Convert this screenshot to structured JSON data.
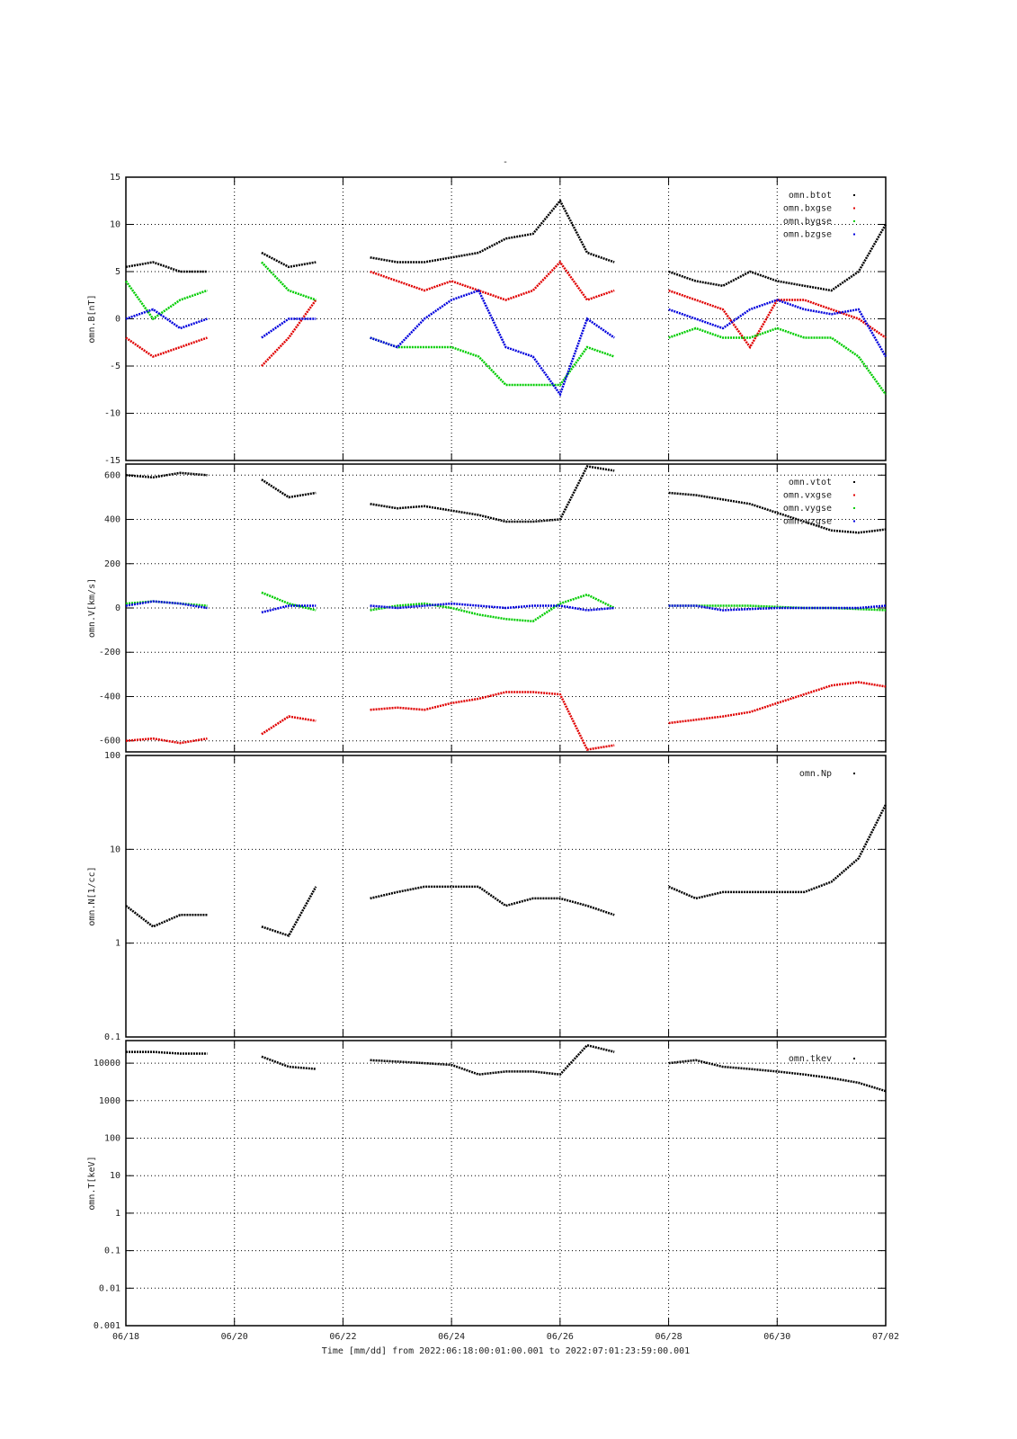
{
  "chart_data": [
    {
      "type": "line",
      "title": "-",
      "ylabel": "omn.B[nT]",
      "legend": "upper right",
      "grid": true,
      "x": [
        0,
        0.5,
        1,
        1.5,
        2,
        2.5,
        3,
        3.5,
        4,
        4.5,
        5,
        5.5,
        6,
        6.5,
        7,
        7.5,
        8,
        8.5,
        9,
        9.5,
        10,
        10.5,
        11,
        11.5,
        12,
        12.5,
        13,
        13.5,
        14
      ],
      "xlim": [
        0,
        14
      ],
      "xticks": [
        0,
        2,
        4,
        6,
        8,
        10,
        12,
        14
      ],
      "ylim": [
        -15,
        15
      ],
      "yticks": [
        -15,
        -10,
        -5,
        0,
        5,
        10,
        15
      ],
      "series": [
        {
          "name": "omn.btot",
          "color": "#000000",
          "values": [
            5.5,
            6,
            5,
            5,
            null,
            7,
            5.5,
            6,
            null,
            6.5,
            6,
            6,
            6.5,
            7,
            8.5,
            9,
            12.5,
            7,
            6,
            null,
            5,
            4,
            3.5,
            5,
            4,
            3.5,
            3,
            5,
            10
          ]
        },
        {
          "name": "omn.bxgse",
          "color": "#e00000",
          "values": [
            -2,
            -4,
            -3,
            -2,
            null,
            -5,
            -2,
            2,
            null,
            5,
            4,
            3,
            4,
            3,
            2,
            3,
            6,
            2,
            3,
            null,
            3,
            2,
            1,
            -3,
            2,
            2,
            1,
            0,
            -2
          ]
        },
        {
          "name": "omn.bygse",
          "color": "#00cc00",
          "values": [
            4,
            0,
            2,
            3,
            null,
            6,
            3,
            2,
            null,
            -2,
            -3,
            -3,
            -3,
            -4,
            -7,
            -7,
            -7,
            -3,
            -4,
            null,
            -2,
            -1,
            -2,
            -2,
            -1,
            -2,
            -2,
            -4,
            -8
          ]
        },
        {
          "name": "omn.bzgse",
          "color": "#0000dd",
          "values": [
            0,
            1,
            -1,
            0,
            null,
            -2,
            0,
            0,
            null,
            -2,
            -3,
            0,
            2,
            3,
            -3,
            -4,
            -8,
            0,
            -2,
            null,
            1,
            0,
            -1,
            1,
            2,
            1,
            0.5,
            1,
            -4
          ]
        }
      ]
    },
    {
      "type": "line",
      "ylabel": "omn.V[km/s]",
      "legend": "upper right",
      "grid": true,
      "x": [
        0,
        0.5,
        1,
        1.5,
        2,
        2.5,
        3,
        3.5,
        4,
        4.5,
        5,
        5.5,
        6,
        6.5,
        7,
        7.5,
        8,
        8.5,
        9,
        9.5,
        10,
        10.5,
        11,
        11.5,
        12,
        12.5,
        13,
        13.5,
        14
      ],
      "xlim": [
        0,
        14
      ],
      "xticks": [
        0,
        2,
        4,
        6,
        8,
        10,
        12,
        14
      ],
      "ylim": [
        -650,
        650
      ],
      "yticks": [
        -600,
        -400,
        -200,
        0,
        200,
        400,
        600
      ],
      "series": [
        {
          "name": "omn.vtot",
          "color": "#000000",
          "values": [
            600,
            590,
            610,
            600,
            null,
            580,
            500,
            520,
            null,
            470,
            450,
            460,
            440,
            420,
            390,
            390,
            400,
            640,
            620,
            null,
            520,
            510,
            490,
            470,
            430,
            390,
            350,
            340,
            355
          ]
        },
        {
          "name": "omn.vxgse",
          "color": "#e00000",
          "values": [
            -600,
            -590,
            -610,
            -590,
            null,
            -570,
            -490,
            -510,
            null,
            -460,
            -450,
            -460,
            -430,
            -410,
            -380,
            -380,
            -390,
            -640,
            -620,
            null,
            -520,
            -505,
            -490,
            -470,
            -430,
            -390,
            -350,
            -335,
            -355
          ]
        },
        {
          "name": "omn.vygse",
          "color": "#00cc00",
          "values": [
            20,
            30,
            20,
            10,
            null,
            70,
            20,
            -10,
            null,
            -10,
            10,
            20,
            0,
            -30,
            -50,
            -60,
            20,
            60,
            0,
            null,
            10,
            10,
            10,
            10,
            5,
            0,
            0,
            -5,
            -10
          ]
        },
        {
          "name": "omn.vzgse",
          "color": "#0000dd",
          "values": [
            10,
            30,
            20,
            0,
            null,
            -20,
            10,
            10,
            null,
            10,
            0,
            10,
            20,
            10,
            0,
            10,
            10,
            -10,
            0,
            null,
            10,
            10,
            -10,
            -5,
            0,
            0,
            0,
            0,
            10
          ]
        }
      ]
    },
    {
      "type": "line",
      "ylabel": "omn.N[1/cc]",
      "legend": "upper right",
      "grid": true,
      "log": true,
      "x": [
        0,
        0.5,
        1,
        1.5,
        2,
        2.5,
        3,
        3.5,
        4,
        4.5,
        5,
        5.5,
        6,
        6.5,
        7,
        7.5,
        8,
        8.5,
        9,
        9.5,
        10,
        10.5,
        11,
        11.5,
        12,
        12.5,
        13,
        13.5,
        14
      ],
      "xlim": [
        0,
        14
      ],
      "xticks": [
        0,
        2,
        4,
        6,
        8,
        10,
        12,
        14
      ],
      "ylim": [
        0.1,
        100
      ],
      "yticks": [
        0.1,
        1,
        10,
        100
      ],
      "series": [
        {
          "name": "omn.Np",
          "color": "#000000",
          "values": [
            2.5,
            1.5,
            2,
            2,
            null,
            1.5,
            1.2,
            4,
            null,
            3,
            3.5,
            4,
            4,
            4,
            2.5,
            3,
            3,
            2.5,
            2,
            null,
            4,
            3,
            3.5,
            3.5,
            3.5,
            3.5,
            4.5,
            8,
            30
          ]
        }
      ]
    },
    {
      "type": "line",
      "ylabel": "omn.T[keV]",
      "xlabel": "Time [mm/dd]  from 2022:06:18:00:01:00.001  to  2022:07:01:23:59:00.001",
      "legend": "upper right",
      "grid": true,
      "log": true,
      "x": [
        0,
        0.5,
        1,
        1.5,
        2,
        2.5,
        3,
        3.5,
        4,
        4.5,
        5,
        5.5,
        6,
        6.5,
        7,
        7.5,
        8,
        8.5,
        9,
        9.5,
        10,
        10.5,
        11,
        11.5,
        12,
        12.5,
        13,
        13.5,
        14
      ],
      "xlim": [
        0,
        14
      ],
      "xticks": [
        {
          "value": 0,
          "label": "06/18"
        },
        {
          "value": 2,
          "label": "06/20"
        },
        {
          "value": 4,
          "label": "06/22"
        },
        {
          "value": 6,
          "label": "06/24"
        },
        {
          "value": 8,
          "label": "06/26"
        },
        {
          "value": 10,
          "label": "06/28"
        },
        {
          "value": 12,
          "label": "06/30"
        },
        {
          "value": 14,
          "label": "07/02"
        }
      ],
      "ylim": [
        0.001,
        40000
      ],
      "yticks": [
        0.001,
        0.01,
        0.1,
        1,
        10,
        100,
        1000,
        10000
      ],
      "series": [
        {
          "name": "omn.tkev",
          "color": "#000000",
          "values": [
            20000,
            20000,
            18000,
            18000,
            null,
            15000,
            8000,
            7000,
            null,
            12000,
            11000,
            10000,
            9000,
            5000,
            6000,
            6000,
            5000,
            30000,
            20000,
            null,
            10000,
            12000,
            8000,
            7000,
            6000,
            5000,
            4000,
            3000,
            1800
          ]
        }
      ]
    }
  ]
}
